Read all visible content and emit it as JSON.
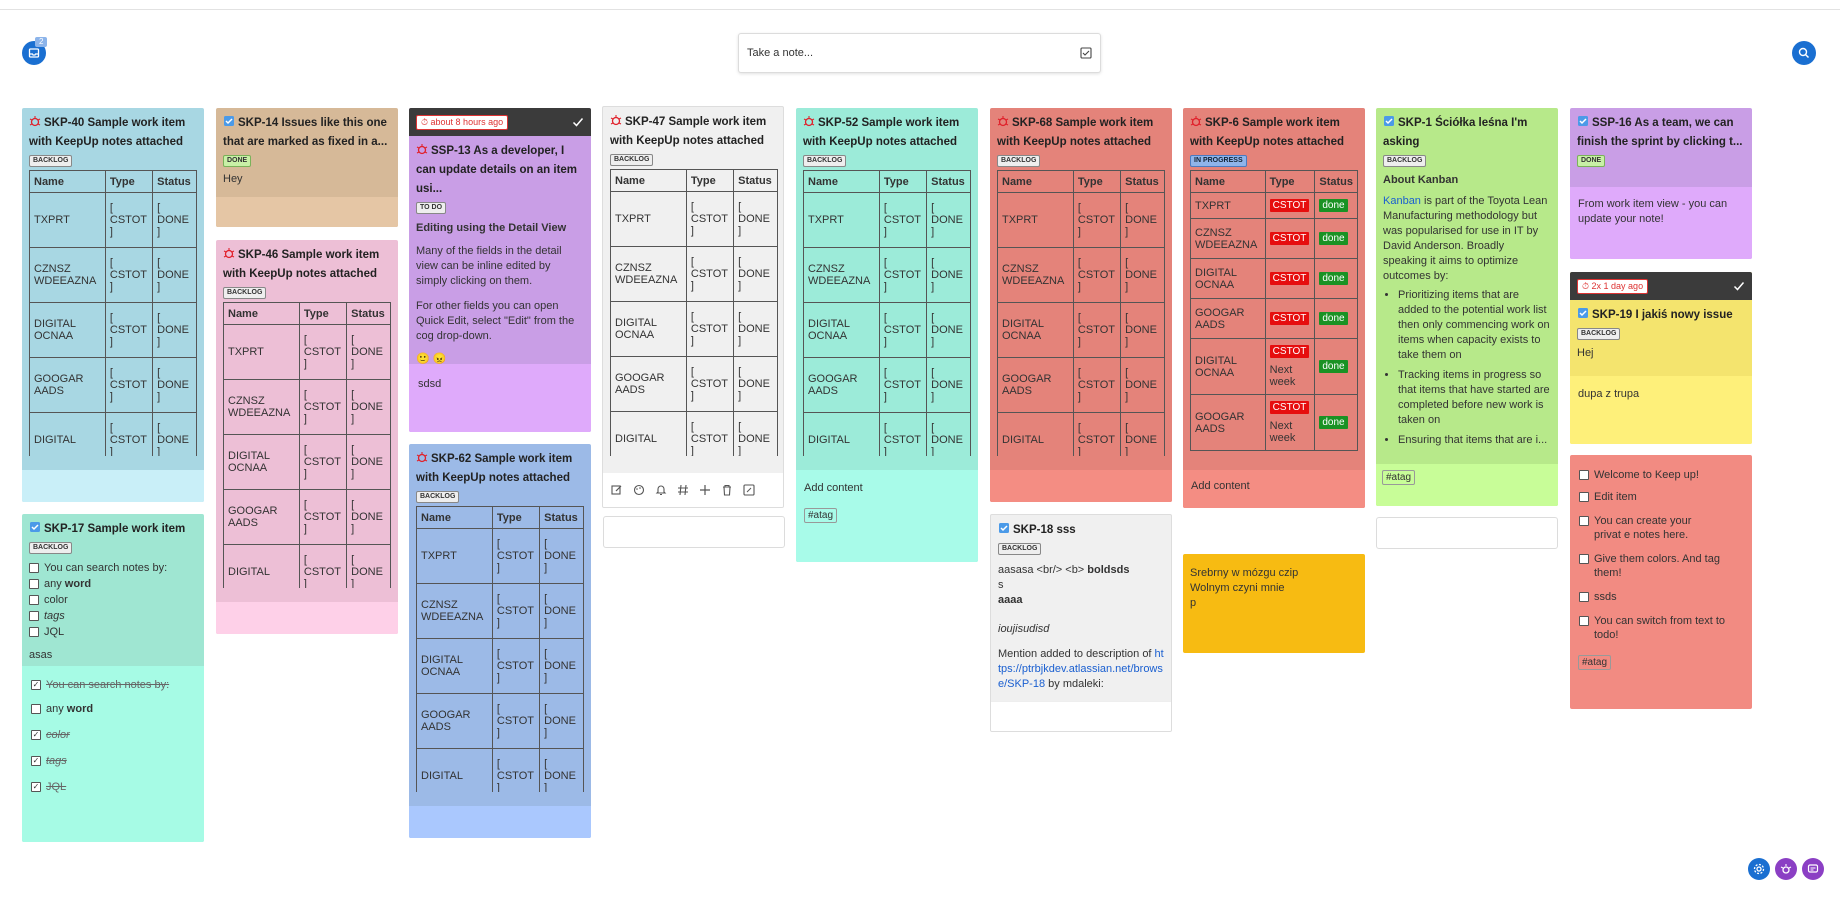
{
  "header": {
    "notif_count": "2",
    "take_note_placeholder": "Take a note..."
  },
  "table": {
    "h_name": "Name",
    "h_type": "Type",
    "h_status": "Status",
    "rows": [
      [
        "TXPRT",
        "[ CSTOT ]",
        "[ DONE ]"
      ],
      [
        "CZNSZ WDEEAZNA",
        "[ CSTOT ]",
        "[ DONE ]"
      ],
      [
        "DIGITAL OCNAA",
        "[ CSTOT ]",
        "[ DONE ]"
      ],
      [
        "GOOGAR AADS",
        "[ CSTOT ]",
        "[ DONE ]"
      ],
      [
        "DIGITAL",
        "[ CSTOT ]",
        "[ DONE ]"
      ]
    ]
  },
  "labels": {
    "backlog": "BACKLOG",
    "done": "DONE",
    "todo": "TO DO",
    "inprogress": "IN PROGRESS"
  },
  "cards": {
    "skp40": {
      "title": "SKP-40 Sample work item with KeepUp notes attached"
    },
    "skp17": {
      "title": "SKP-17 Sample work item",
      "checks": [
        "You can search notes by:",
        "any ",
        "word",
        "color",
        "tags",
        "JQL"
      ],
      "note": "asas",
      "done_items": [
        "You can search notes by:",
        "any ",
        "word",
        "color",
        "tags",
        "JQL"
      ]
    },
    "skp14": {
      "title": "SKP-14 Issues like this one that are marked as fixed in a...",
      "body": "Hey"
    },
    "skp46": {
      "title": "SKP-46 Sample work item with KeepUp notes attached"
    },
    "ssp13": {
      "time": "about 8 hours ago",
      "title": "SSP-13 As a developer, I can update details on an item usi...",
      "heading": "Editing using the Detail View",
      "p1": "Many of the fields in the detail view can be inline edited by simply clicking on them.",
      "p2": "For other fields you can open Quick Edit, select \"Edit\" from the cog drop-down.",
      "emoji": "🙂 😠",
      "note": "sdsd"
    },
    "skp62": {
      "title": "SKP-62 Sample work item with KeepUp notes attached"
    },
    "skp47": {
      "title": "SKP-47 Sample work item with KeepUp notes attached"
    },
    "skp52": {
      "title": "SKP-52 Sample work item with KeepUp notes attached",
      "add": "Add content",
      "tag": "#atag"
    },
    "skp68": {
      "title": "SKP-68 Sample work item with KeepUp notes attached"
    },
    "skp18": {
      "title": "SKP-18 sss",
      "l1": "aasasa <br/> <b> ",
      "l1b": "boldsds",
      "l2": "s",
      "l3": "aaaa",
      "l4": "ioujisudisd",
      "l5": "Mention added to description of ",
      "link": "https://ptrbjkdev.atlassian.net/browse/SKP-18",
      "l5b": " by mdaleki:"
    },
    "skp6": {
      "title": "SKP-6 Sample work item with KeepUp notes attached",
      "rows": [
        [
          "TXPRT",
          "CSTOT",
          "",
          "done"
        ],
        [
          "CZNSZ WDEEAZNA",
          "CSTOT",
          "",
          "done"
        ],
        [
          "DIGITAL OCNAA",
          "CSTOT",
          "",
          "done"
        ],
        [
          "GOOGAR AADS",
          "CSTOT",
          "",
          "done"
        ],
        [
          "DIGITAL OCNAA",
          "CSTOT",
          "Next week",
          "done"
        ],
        [
          "GOOGAR AADS",
          "CSTOT",
          "Next week",
          "done"
        ]
      ],
      "add": "Add content"
    },
    "yellow": {
      "l1": "Srebrny w mózgu czip",
      "l2": "Wolnym czyni mnie",
      "l3": "p"
    },
    "skp1": {
      "title": "SKP-1 Ściółka leśna I'm asking",
      "heading": "About Kanban",
      "link": "Kanban",
      "p1": " is part of the Toyota Lean Manufacturing methodology but was popularised for use in IT by David Anderson. Broadly speaking it aims to optimize outcomes by:",
      "b1": "Prioritizing items that are added to the potential work list then only commencing work on items when capacity exists to take them on",
      "b2": "Tracking items in progress so that items that have started are completed before new work is taken on",
      "b3": "Ensuring that items that are i...",
      "tag": "#atag"
    },
    "ssp16": {
      "title": "SSP-16 As a team, we can finish the sprint by clicking t...",
      "body": "From work item view - you can update your note!"
    },
    "skp19": {
      "time": "2x 1 day ago",
      "title": "SKP-19 I jakiś nowy issue",
      "body": "Hej",
      "note": "dupa z trupa"
    },
    "todo": {
      "items": [
        "Welcome to Keep up!",
        "Edit item",
        "You can create your privat e notes here.",
        "Give them colors. And tag them!",
        "ssds",
        "You can switch from text to todo!"
      ],
      "tag": "#atag"
    }
  },
  "colors": {
    "accent": "#1a6fd1"
  }
}
